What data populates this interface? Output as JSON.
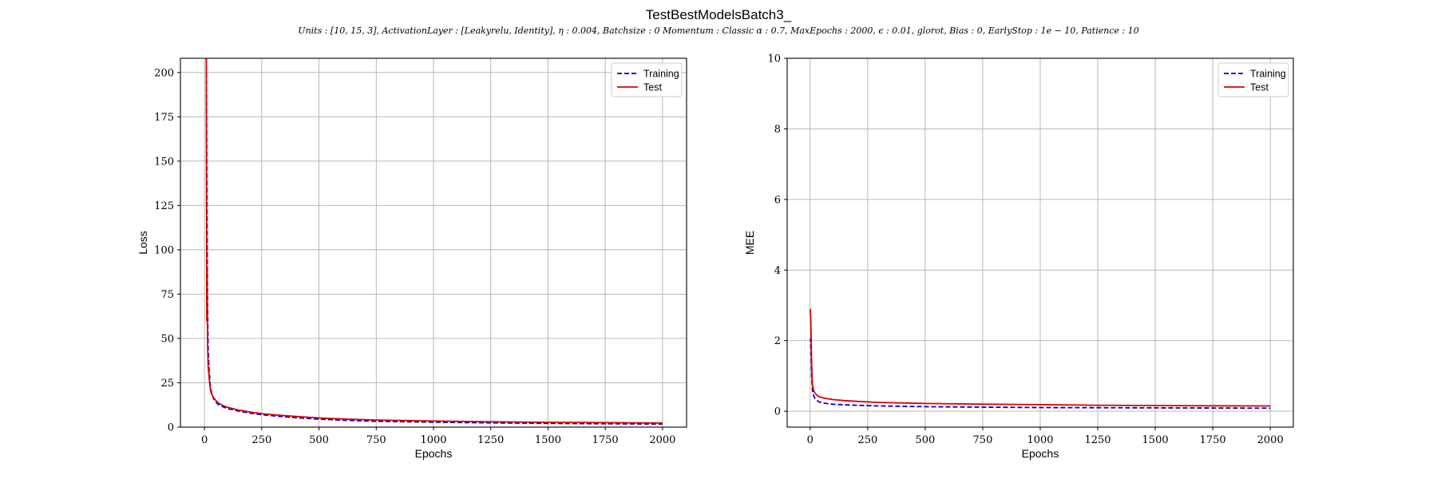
{
  "title": "TestBestModelsBatch3_",
  "subtitle": "Units : [10, 15, 3], ActivationLayer : [Leakyrelu, Identity], η : 0.004, Batchsize : 0 Momentum : Classic α : 0.7, MaxEpochs : 2000, ϵ : 0.01, glorot, Bias : 0, EarlyStop : 1e − 10, Patience : 10",
  "colors": {
    "training": "#0000cc",
    "test": "#dd0000"
  },
  "chart_data": [
    {
      "type": "line",
      "xlabel": "Epochs",
      "ylabel": "Loss",
      "xlim": [
        -105,
        2105
      ],
      "ylim": [
        0,
        208
      ],
      "xticks": [
        0,
        250,
        500,
        750,
        1000,
        1250,
        1500,
        1750,
        2000
      ],
      "yticks": [
        0,
        25,
        50,
        75,
        100,
        125,
        150,
        175,
        200
      ],
      "grid": true,
      "legend_position": "top-right",
      "series": [
        {
          "name": "Training",
          "style": "dashed",
          "color": "#0000cc",
          "x": [
            8,
            10,
            12,
            14,
            16,
            20,
            25,
            30,
            40,
            50,
            60,
            80,
            100,
            150,
            200,
            250,
            300,
            400,
            500,
            600,
            750,
            1000,
            1250,
            1500,
            1750,
            2000
          ],
          "y": [
            208,
            150,
            95,
            65,
            45,
            32,
            24,
            20,
            16,
            14,
            12.8,
            11.5,
            10.5,
            9,
            7.9,
            7,
            6.4,
            5.3,
            4.5,
            3.9,
            3.3,
            2.8,
            2.4,
            2.1,
            1.9,
            1.7
          ]
        },
        {
          "name": "Test",
          "style": "solid",
          "color": "#dd0000",
          "x": [
            8,
            9,
            10,
            11,
            12,
            14,
            16,
            20,
            25,
            30,
            40,
            50,
            60,
            80,
            100,
            150,
            200,
            250,
            300,
            400,
            500,
            600,
            750,
            1000,
            1250,
            1500,
            1750,
            2000
          ],
          "y": [
            208,
            130,
            60,
            90,
            68,
            45,
            35,
            28,
            22,
            19,
            16.5,
            15,
            13.7,
            12.2,
            11.2,
            9.6,
            8.5,
            7.6,
            7,
            6,
            5.2,
            4.6,
            4,
            3.4,
            3,
            2.7,
            2.5,
            2.3
          ]
        }
      ]
    },
    {
      "type": "line",
      "xlabel": "Epochs",
      "ylabel": "MEE",
      "xlim": [
        -100,
        2100
      ],
      "ylim": [
        -0.45,
        10
      ],
      "xticks": [
        0,
        250,
        500,
        750,
        1000,
        1250,
        1500,
        1750,
        2000
      ],
      "yticks": [
        0,
        2,
        4,
        6,
        8,
        10
      ],
      "grid": true,
      "legend_position": "top-right",
      "series": [
        {
          "name": "Training",
          "style": "dashed",
          "color": "#0000cc",
          "x": [
            0,
            2,
            4,
            6,
            8,
            10,
            15,
            20,
            30,
            40,
            60,
            80,
            100,
            150,
            200,
            300,
            500,
            750,
            1000,
            1250,
            1500,
            1750,
            2000
          ],
          "y": [
            2.0,
            2.05,
            1.6,
            1.1,
            0.8,
            0.6,
            0.45,
            0.37,
            0.3,
            0.26,
            0.23,
            0.21,
            0.2,
            0.18,
            0.17,
            0.15,
            0.13,
            0.115,
            0.105,
            0.1,
            0.095,
            0.09,
            0.085
          ]
        },
        {
          "name": "Test",
          "style": "solid",
          "color": "#dd0000",
          "x": [
            0,
            2,
            4,
            6,
            8,
            10,
            15,
            20,
            30,
            40,
            60,
            80,
            100,
            150,
            200,
            300,
            500,
            750,
            1000,
            1250,
            1500,
            1750,
            2000
          ],
          "y": [
            2.9,
            2.7,
            2.2,
            1.5,
            1.0,
            0.75,
            0.6,
            0.52,
            0.45,
            0.41,
            0.37,
            0.35,
            0.33,
            0.3,
            0.28,
            0.25,
            0.22,
            0.2,
            0.185,
            0.17,
            0.16,
            0.155,
            0.15
          ]
        }
      ]
    }
  ]
}
